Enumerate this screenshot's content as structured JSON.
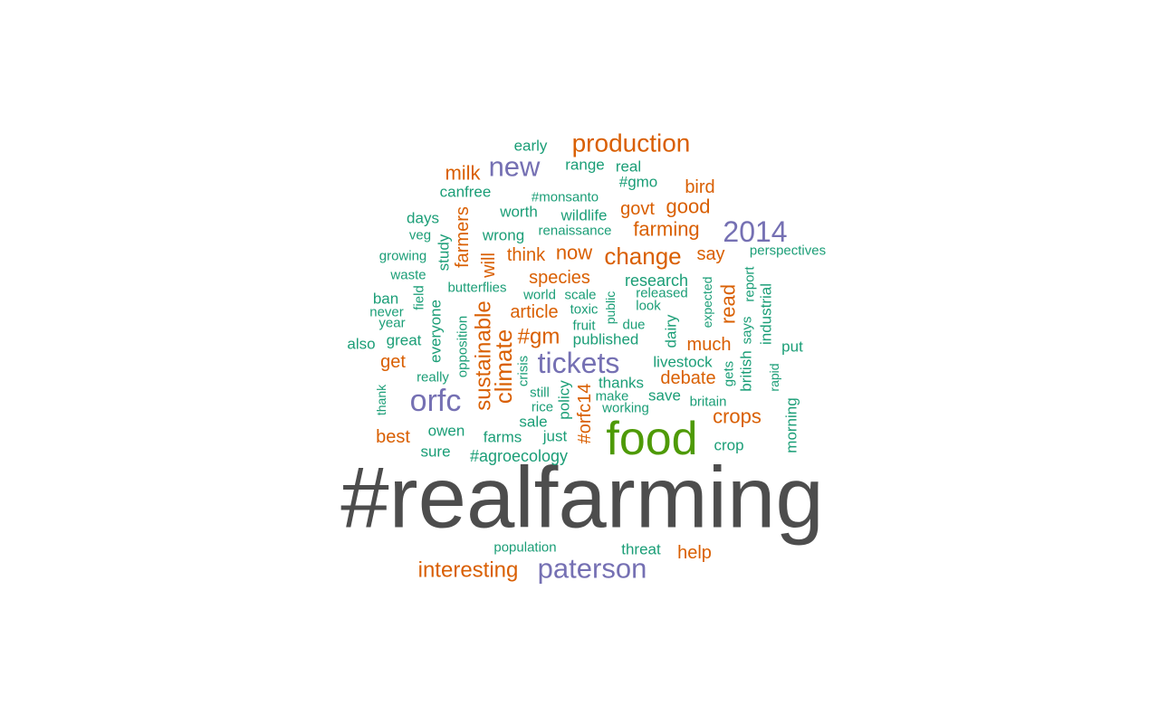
{
  "palette": {
    "teal": "#1b9e77",
    "orange": "#d95f02",
    "purple": "#7570b3",
    "green": "#4e9a06",
    "gray": "#4d4d4d",
    "background": "#ffffff"
  },
  "words": [
    {
      "text": "#realfarming",
      "color": "gray"
    },
    {
      "text": "food",
      "color": "green"
    },
    {
      "text": "orfc",
      "color": "purple"
    },
    {
      "text": "tickets",
      "color": "purple"
    },
    {
      "text": "paterson",
      "color": "purple"
    },
    {
      "text": "2014",
      "color": "purple"
    },
    {
      "text": "new",
      "color": "purple"
    },
    {
      "text": "production",
      "color": "orange"
    },
    {
      "text": "climate",
      "color": "orange"
    },
    {
      "text": "change",
      "color": "orange"
    },
    {
      "text": "interesting",
      "color": "orange"
    },
    {
      "text": "sustainable",
      "color": "orange"
    },
    {
      "text": "#gm",
      "color": "orange"
    },
    {
      "text": "crops",
      "color": "orange"
    },
    {
      "text": "milk",
      "color": "orange"
    },
    {
      "text": "farming",
      "color": "orange"
    },
    {
      "text": "good",
      "color": "orange"
    },
    {
      "text": "now",
      "color": "orange"
    },
    {
      "text": "read",
      "color": "orange"
    },
    {
      "text": "debate",
      "color": "orange"
    },
    {
      "text": "much",
      "color": "orange"
    },
    {
      "text": "article",
      "color": "orange"
    },
    {
      "text": "species",
      "color": "orange"
    },
    {
      "text": "farmers",
      "color": "orange"
    },
    {
      "text": "best",
      "color": "orange"
    },
    {
      "text": "help",
      "color": "orange"
    },
    {
      "text": "bird",
      "color": "orange"
    },
    {
      "text": "say",
      "color": "orange"
    },
    {
      "text": "govt",
      "color": "orange"
    },
    {
      "text": "think",
      "color": "orange"
    },
    {
      "text": "get",
      "color": "orange"
    },
    {
      "text": "will",
      "color": "orange"
    },
    {
      "text": "#orfc14",
      "color": "orange"
    },
    {
      "text": "early",
      "color": "teal"
    },
    {
      "text": "range",
      "color": "teal"
    },
    {
      "text": "real",
      "color": "teal"
    },
    {
      "text": "#gmo",
      "color": "teal"
    },
    {
      "text": "canfree",
      "color": "teal"
    },
    {
      "text": "#monsanto",
      "color": "teal"
    },
    {
      "text": "days",
      "color": "teal"
    },
    {
      "text": "worth",
      "color": "teal"
    },
    {
      "text": "wildlife",
      "color": "teal"
    },
    {
      "text": "veg",
      "color": "teal"
    },
    {
      "text": "wrong",
      "color": "teal"
    },
    {
      "text": "renaissance",
      "color": "teal"
    },
    {
      "text": "growing",
      "color": "teal"
    },
    {
      "text": "study",
      "color": "teal"
    },
    {
      "text": "waste",
      "color": "teal"
    },
    {
      "text": "perspectives",
      "color": "teal"
    },
    {
      "text": "research",
      "color": "teal"
    },
    {
      "text": "butterflies",
      "color": "teal"
    },
    {
      "text": "world",
      "color": "teal"
    },
    {
      "text": "scale",
      "color": "teal"
    },
    {
      "text": "released",
      "color": "teal"
    },
    {
      "text": "ban",
      "color": "teal"
    },
    {
      "text": "field",
      "color": "teal"
    },
    {
      "text": "everyone",
      "color": "teal"
    },
    {
      "text": "never",
      "color": "teal"
    },
    {
      "text": "toxic",
      "color": "teal"
    },
    {
      "text": "look",
      "color": "teal"
    },
    {
      "text": "public",
      "color": "teal"
    },
    {
      "text": "year",
      "color": "teal"
    },
    {
      "text": "opposition",
      "color": "teal"
    },
    {
      "text": "fruit",
      "color": "teal"
    },
    {
      "text": "due",
      "color": "teal"
    },
    {
      "text": "dairy",
      "color": "teal"
    },
    {
      "text": "expected",
      "color": "teal"
    },
    {
      "text": "report",
      "color": "teal"
    },
    {
      "text": "industrial",
      "color": "teal"
    },
    {
      "text": "also",
      "color": "teal"
    },
    {
      "text": "great",
      "color": "teal"
    },
    {
      "text": "published",
      "color": "teal"
    },
    {
      "text": "says",
      "color": "teal"
    },
    {
      "text": "put",
      "color": "teal"
    },
    {
      "text": "livestock",
      "color": "teal"
    },
    {
      "text": "british",
      "color": "teal"
    },
    {
      "text": "really",
      "color": "teal"
    },
    {
      "text": "crisis",
      "color": "teal"
    },
    {
      "text": "thanks",
      "color": "teal"
    },
    {
      "text": "gets",
      "color": "teal"
    },
    {
      "text": "rapid",
      "color": "teal"
    },
    {
      "text": "thank",
      "color": "teal"
    },
    {
      "text": "still",
      "color": "teal"
    },
    {
      "text": "make",
      "color": "teal"
    },
    {
      "text": "save",
      "color": "teal"
    },
    {
      "text": "britain",
      "color": "teal"
    },
    {
      "text": "rice",
      "color": "teal"
    },
    {
      "text": "policy",
      "color": "teal"
    },
    {
      "text": "working",
      "color": "teal"
    },
    {
      "text": "morning",
      "color": "teal"
    },
    {
      "text": "sale",
      "color": "teal"
    },
    {
      "text": "owen",
      "color": "teal"
    },
    {
      "text": "farms",
      "color": "teal"
    },
    {
      "text": "just",
      "color": "teal"
    },
    {
      "text": "crop",
      "color": "teal"
    },
    {
      "text": "sure",
      "color": "teal"
    },
    {
      "text": "#agroecology",
      "color": "teal"
    },
    {
      "text": "population",
      "color": "teal"
    },
    {
      "text": "threat",
      "color": "teal"
    }
  ]
}
